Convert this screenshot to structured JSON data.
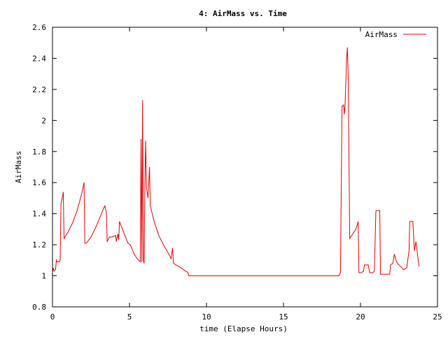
{
  "chart_data": {
    "type": "line",
    "title": "4: AirMass vs. Time",
    "xlabel": "time (Elapse Hours)",
    "ylabel": "AirMass",
    "xlim": [
      0,
      25
    ],
    "ylim": [
      0.8,
      2.6
    ],
    "xticks": [
      0,
      5,
      10,
      15,
      20,
      25
    ],
    "yticks": [
      0.8,
      1,
      1.2,
      1.4,
      1.6,
      1.8,
      2,
      2.2,
      2.4,
      2.6
    ],
    "xtick_labels": [
      "0",
      "5",
      "10",
      "15",
      "20",
      "25"
    ],
    "ytick_labels": [
      "0.8",
      "1",
      "1.2",
      "1.4",
      "1.6",
      "1.8",
      "2",
      "2.2",
      "2.4",
      "2.6"
    ],
    "grid": false,
    "legend_position": "top-right",
    "colors": {
      "series": "#e00000",
      "axes": "#000000"
    },
    "series": [
      {
        "name": "AirMass",
        "points": [
          [
            0.0,
            1.02
          ],
          [
            0.05,
            1.05
          ],
          [
            0.1,
            1.03
          ],
          [
            0.2,
            1.04
          ],
          [
            0.25,
            1.1
          ],
          [
            0.3,
            1.09
          ],
          [
            0.45,
            1.09
          ],
          [
            0.5,
            1.1
          ],
          [
            0.55,
            1.46
          ],
          [
            0.7,
            1.54
          ],
          [
            0.75,
            1.24
          ],
          [
            1.0,
            1.28
          ],
          [
            1.3,
            1.34
          ],
          [
            1.6,
            1.42
          ],
          [
            1.9,
            1.53
          ],
          [
            2.05,
            1.6
          ],
          [
            2.1,
            1.21
          ],
          [
            2.2,
            1.21
          ],
          [
            2.5,
            1.25
          ],
          [
            2.8,
            1.31
          ],
          [
            3.1,
            1.38
          ],
          [
            3.3,
            1.43
          ],
          [
            3.4,
            1.45
          ],
          [
            3.5,
            1.41
          ],
          [
            3.55,
            1.22
          ],
          [
            3.7,
            1.25
          ],
          [
            3.9,
            1.25
          ],
          [
            4.1,
            1.26
          ],
          [
            4.15,
            1.22
          ],
          [
            4.25,
            1.27
          ],
          [
            4.3,
            1.23
          ],
          [
            4.35,
            1.35
          ],
          [
            4.5,
            1.31
          ],
          [
            4.7,
            1.26
          ],
          [
            4.9,
            1.21
          ],
          [
            5.05,
            1.2
          ],
          [
            5.3,
            1.14
          ],
          [
            5.5,
            1.11
          ],
          [
            5.7,
            1.09
          ],
          [
            5.75,
            1.88
          ],
          [
            5.8,
            1.09
          ],
          [
            5.85,
            2.13
          ],
          [
            5.9,
            1.1
          ],
          [
            5.95,
            1.08
          ],
          [
            6.0,
            1.6
          ],
          [
            6.05,
            1.87
          ],
          [
            6.1,
            1.57
          ],
          [
            6.2,
            1.5
          ],
          [
            6.3,
            1.7
          ],
          [
            6.35,
            1.45
          ],
          [
            6.6,
            1.35
          ],
          [
            6.9,
            1.26
          ],
          [
            7.2,
            1.2
          ],
          [
            7.5,
            1.15
          ],
          [
            7.7,
            1.11
          ],
          [
            7.8,
            1.18
          ],
          [
            7.85,
            1.08
          ],
          [
            8.2,
            1.06
          ],
          [
            8.5,
            1.04
          ],
          [
            8.8,
            1.02
          ],
          [
            8.85,
            1.0
          ],
          [
            9.5,
            1.0
          ],
          [
            12.0,
            1.0
          ],
          [
            15.0,
            1.0
          ],
          [
            17.0,
            1.0
          ],
          [
            18.6,
            1.0
          ],
          [
            18.7,
            1.02
          ],
          [
            18.8,
            2.09
          ],
          [
            18.9,
            2.1
          ],
          [
            18.95,
            2.04
          ],
          [
            19.0,
            2.1
          ],
          [
            19.1,
            2.4
          ],
          [
            19.15,
            2.47
          ],
          [
            19.2,
            2.3
          ],
          [
            19.3,
            1.24
          ],
          [
            19.5,
            1.27
          ],
          [
            19.7,
            1.3
          ],
          [
            19.85,
            1.35
          ],
          [
            19.9,
            1.02
          ],
          [
            20.05,
            1.02
          ],
          [
            20.2,
            1.03
          ],
          [
            20.25,
            1.07
          ],
          [
            20.5,
            1.07
          ],
          [
            20.6,
            1.02
          ],
          [
            20.8,
            1.02
          ],
          [
            20.9,
            1.03
          ],
          [
            21.0,
            1.42
          ],
          [
            21.25,
            1.42
          ],
          [
            21.3,
            1.01
          ],
          [
            21.9,
            1.01
          ],
          [
            21.95,
            1.07
          ],
          [
            22.1,
            1.08
          ],
          [
            22.2,
            1.14
          ],
          [
            22.3,
            1.1
          ],
          [
            22.4,
            1.08
          ],
          [
            22.6,
            1.06
          ],
          [
            22.8,
            1.04
          ],
          [
            23.0,
            1.05
          ],
          [
            23.15,
            1.16
          ],
          [
            23.2,
            1.35
          ],
          [
            23.4,
            1.35
          ],
          [
            23.5,
            1.16
          ],
          [
            23.6,
            1.22
          ],
          [
            23.7,
            1.14
          ],
          [
            23.8,
            1.06
          ]
        ]
      }
    ]
  }
}
